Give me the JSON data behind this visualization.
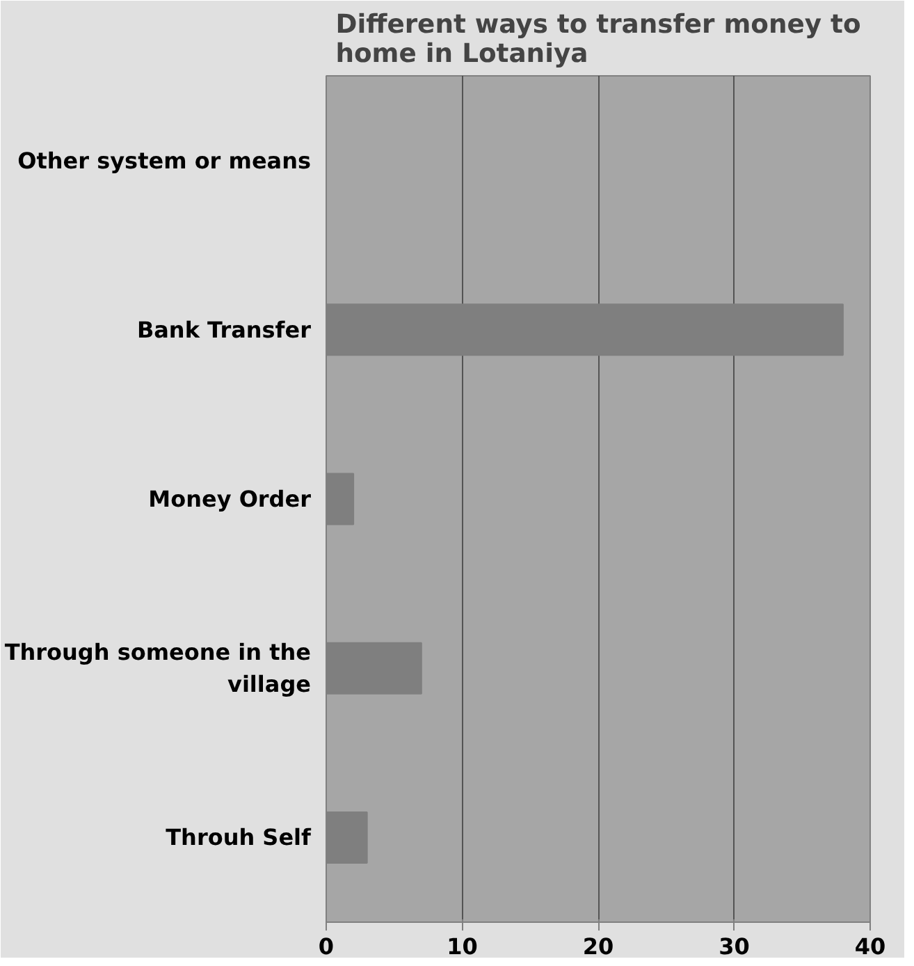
{
  "chart_data": {
    "type": "bar",
    "orientation": "horizontal",
    "title": "Different ways to transfer money to home in Lotaniya",
    "categories": [
      "Other system or means",
      "Bank Transfer",
      "Money Order",
      "Through someone in the village",
      "Throuh Self"
    ],
    "values": [
      0,
      38,
      2,
      7,
      3
    ],
    "color": "#7f7f7f",
    "xlim": [
      0,
      40
    ],
    "xticks": [
      0,
      10,
      20,
      30,
      40
    ],
    "grid": "x"
  }
}
